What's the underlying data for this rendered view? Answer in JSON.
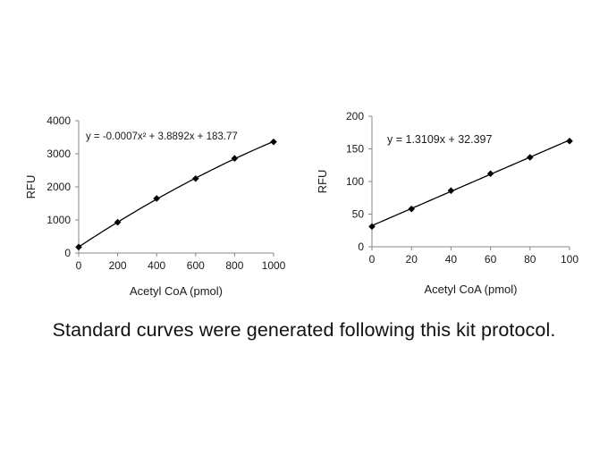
{
  "chart_data": [
    {
      "type": "line",
      "xlabel": "Acetyl CoA (pmol)",
      "ylabel": "RFU",
      "xlim": [
        0,
        1000
      ],
      "ylim": [
        0,
        4000
      ],
      "xticks": [
        "0",
        "200",
        "400",
        "600",
        "800",
        "1000"
      ],
      "yticks": [
        "0",
        "1000",
        "2000",
        "3000",
        "4000"
      ],
      "grid": false,
      "series": [
        {
          "x": [
            0,
            200,
            400,
            600,
            800,
            1000
          ],
          "values": [
            180,
            930,
            1650,
            2250,
            2860,
            3360
          ],
          "marker": "diamond"
        }
      ],
      "annotations": [
        {
          "text": "y = -0.0007x² + 3.8892x + 183.77"
        }
      ],
      "trendline": {
        "type": "polynomial",
        "a2": -0.0007,
        "a1": 3.8892,
        "a0": 183.77
      }
    },
    {
      "type": "line",
      "xlabel": "Acetyl CoA (pmol)",
      "ylabel": "RFU",
      "xlim": [
        0,
        100
      ],
      "ylim": [
        0,
        200
      ],
      "xticks": [
        "0",
        "20",
        "40",
        "60",
        "80",
        "100"
      ],
      "yticks": [
        "0",
        "50",
        "100",
        "150",
        "200"
      ],
      "grid": false,
      "series": [
        {
          "x": [
            0,
            20,
            40,
            60,
            80,
            100
          ],
          "values": [
            31,
            58,
            86,
            112,
            137,
            162
          ],
          "marker": "diamond"
        }
      ],
      "annotations": [
        {
          "text": "y = 1.3109x + 32.397"
        }
      ],
      "trendline": {
        "type": "linear",
        "a1": 1.3109,
        "a0": 32.397
      }
    }
  ],
  "caption": "Standard curves were generated following this kit protocol.",
  "colors": {
    "line": "#000000",
    "marker": "#000000",
    "axis": "#888888",
    "text": "#1a1a1a"
  }
}
